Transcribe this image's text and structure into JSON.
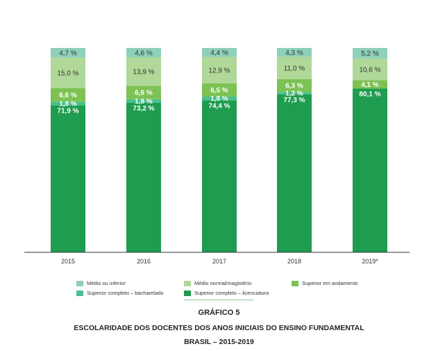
{
  "chart_data": {
    "type": "bar",
    "stacked": true,
    "normalized": true,
    "categories": [
      "2015",
      "2016",
      "2017",
      "2018",
      "2019*"
    ],
    "series": [
      {
        "name": "Superior completo – licenciatura",
        "color": "#1e9c4f",
        "label_color": "#ffffff",
        "values": [
          71.9,
          73.2,
          74.4,
          77.3,
          80.1
        ],
        "labels": [
          "71,9 %",
          "73,2 %",
          "74,4 %",
          "77,3 %",
          "80,1 %"
        ]
      },
      {
        "name": "Superior completo – bacharelado",
        "color": "#49c08d",
        "label_color": "#ffffff",
        "values": [
          1.8,
          1.8,
          1.8,
          1.2,
          0
        ],
        "labels": [
          "1,8 %",
          "1,8 %",
          "1,8 %",
          "1,2 %",
          ""
        ]
      },
      {
        "name": "Superior em andamento",
        "color": "#7dc253",
        "label_color": "#ffffff",
        "values": [
          6.6,
          6.6,
          6.5,
          6.3,
          4.1
        ],
        "labels": [
          "6,6 %",
          "6,6 %",
          "6,5 %",
          "6,3 %",
          "4,1 %"
        ]
      },
      {
        "name": "Médio normal/magistério",
        "color": "#b0d898",
        "label_color": "#333333",
        "values": [
          15.0,
          13.9,
          12.9,
          11.0,
          10.6
        ],
        "labels": [
          "15,0 %",
          "13,9 %",
          "12,9 %",
          "11,0 %",
          "10,6 %"
        ]
      },
      {
        "name": "Médio ou inferior",
        "color": "#8ed0b8",
        "label_color": "#333333",
        "values": [
          4.7,
          4.6,
          4.4,
          4.3,
          5.2
        ],
        "labels": [
          "4,7 %",
          "4,6 %",
          "4,4 %",
          "4,3 %",
          "5,2 %"
        ]
      }
    ],
    "legend": {
      "placement": "bottom",
      "order": [
        "Médio ou inferior",
        "Médio normal/magistério",
        "Superior em andamento",
        "Superior completo – bacharelado",
        "Superior completo – licenciatura"
      ]
    },
    "ylim": [
      0,
      100
    ],
    "grid": false
  },
  "caption": {
    "number": "GRÁFICO 5",
    "title": "ESCOLARIDADE DOS DOCENTES DOS ANOS INICIAIS DO ENSINO FUNDAMENTAL",
    "subtitle": "BRASIL – 2015-2019"
  }
}
